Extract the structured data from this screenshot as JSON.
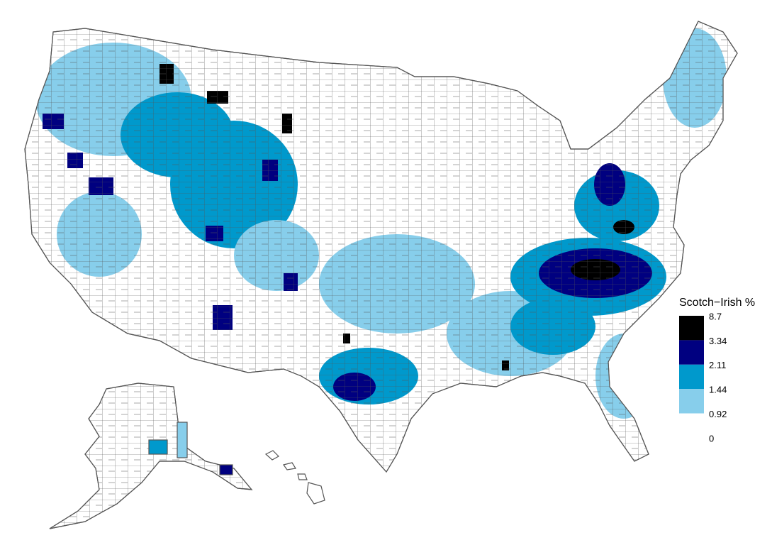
{
  "legend": {
    "title": "Scotch−Irish %",
    "breaks": [
      8.7,
      3.34,
      2.11,
      1.44,
      0.92,
      0.0
    ],
    "colors": [
      "#000000",
      "#000080",
      "#0099cc",
      "#87ceeb",
      "#ffffff"
    ]
  }
}
